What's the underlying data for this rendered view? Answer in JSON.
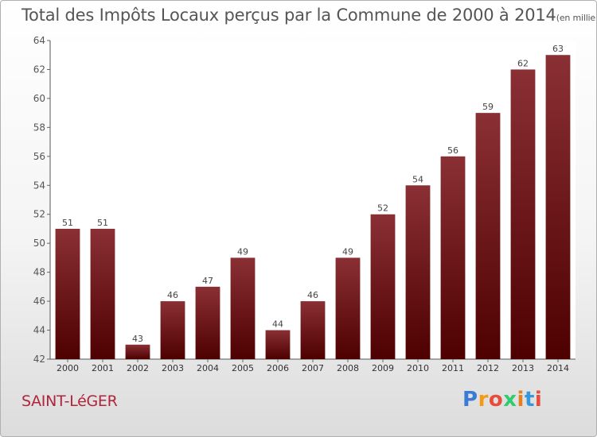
{
  "chart_data": {
    "type": "bar",
    "title": "Total des Impôts Locaux perçus par la Commune de 2000 à 2014",
    "unit_label": "(en milliers d'€)",
    "categories": [
      "2000",
      "2001",
      "2002",
      "2003",
      "2004",
      "2005",
      "2006",
      "2007",
      "2008",
      "2009",
      "2010",
      "2011",
      "2012",
      "2013",
      "2014"
    ],
    "values": [
      51,
      51,
      43,
      46,
      47,
      49,
      44,
      46,
      49,
      52,
      54,
      56,
      59,
      62,
      63
    ],
    "ylim": [
      42,
      64
    ],
    "yticks": [
      42,
      44,
      46,
      48,
      50,
      52,
      54,
      56,
      58,
      60,
      62,
      64
    ],
    "xlabel": "",
    "ylabel": "",
    "bar_color_top": "#8a3035",
    "bar_color_bottom": "#4e0000"
  },
  "commune": {
    "name": "SAINT-LéGER",
    "color": "#b0243c"
  },
  "brand": {
    "letters": [
      "P",
      "r",
      "o",
      "x",
      "i",
      "t",
      "i"
    ],
    "colors": [
      "#3a7bd5",
      "#f39c12",
      "#e74c3c",
      "#2ecc71",
      "#e67e22",
      "#3498db",
      "#e74c3c"
    ]
  }
}
